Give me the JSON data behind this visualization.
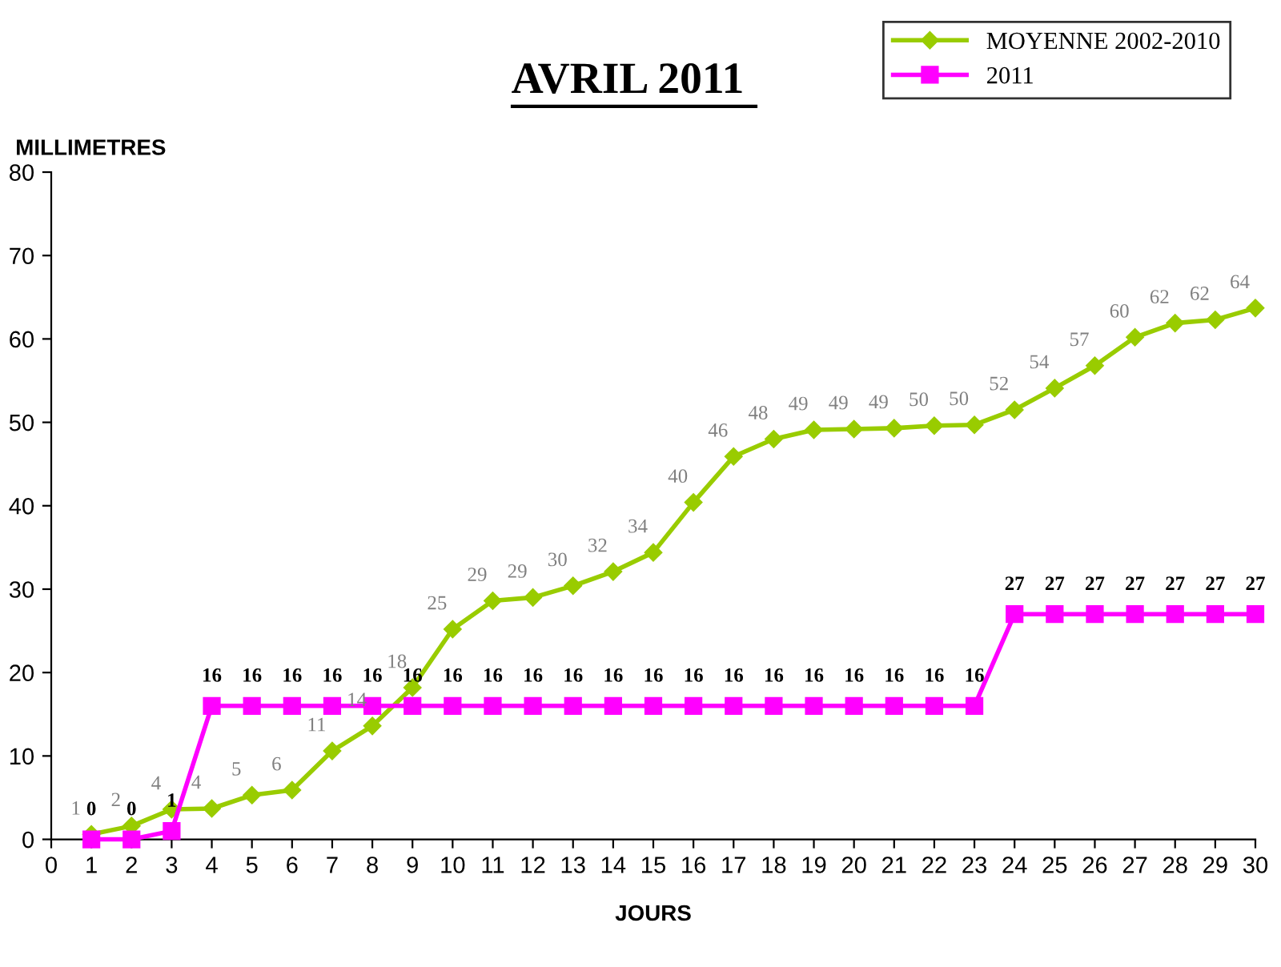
{
  "chart_data": {
    "type": "line",
    "title": "AVRIL 2011",
    "xlabel": "JOURS",
    "ylabel": "MILLIMETRES",
    "x": [
      1,
      2,
      3,
      4,
      5,
      6,
      7,
      8,
      9,
      10,
      11,
      12,
      13,
      14,
      15,
      16,
      17,
      18,
      19,
      20,
      21,
      22,
      23,
      24,
      25,
      26,
      27,
      28,
      29,
      30
    ],
    "series": [
      {
        "name": "MOYENNE 2002-2010",
        "color": "#99cc00",
        "marker": "diamond",
        "values": [
          0.6,
          1.6,
          3.6,
          3.7,
          5.3,
          5.9,
          10.6,
          13.6,
          18.2,
          25.2,
          28.6,
          29.0,
          30.4,
          32.1,
          34.4,
          40.4,
          45.9,
          48.0,
          49.1,
          49.2,
          49.3,
          49.6,
          49.7,
          51.5,
          54.1,
          56.8,
          60.2,
          61.9,
          62.3,
          63.7
        ],
        "value_labels": [
          "1",
          "2",
          "4",
          "4",
          "5",
          "6",
          "11",
          "14",
          "18",
          "25",
          "29",
          "29",
          "30",
          "32",
          "34",
          "40",
          "46",
          "48",
          "49",
          "49",
          "49",
          "50",
          "50",
          "52",
          "54",
          "57",
          "60",
          "62",
          "62",
          "64"
        ]
      },
      {
        "name": "2011",
        "color": "#ff00ff",
        "marker": "square",
        "data_labels": true,
        "values": [
          0,
          0,
          1,
          16,
          16,
          16,
          16,
          16,
          16,
          16,
          16,
          16,
          16,
          16,
          16,
          16,
          16,
          16,
          16,
          16,
          16,
          16,
          16,
          27,
          27,
          27,
          27,
          27,
          27,
          27
        ]
      }
    ],
    "xlim": [
      0,
      30
    ],
    "xticks": [
      0,
      1,
      2,
      3,
      4,
      5,
      6,
      7,
      8,
      9,
      10,
      11,
      12,
      13,
      14,
      15,
      16,
      17,
      18,
      19,
      20,
      21,
      22,
      23,
      24,
      25,
      26,
      27,
      28,
      29,
      30
    ],
    "ylim": [
      0,
      80
    ],
    "yticks": [
      0,
      10,
      20,
      30,
      40,
      50,
      60,
      70,
      80
    ],
    "grid": false,
    "legend": "top right",
    "line_style": "solid"
  }
}
